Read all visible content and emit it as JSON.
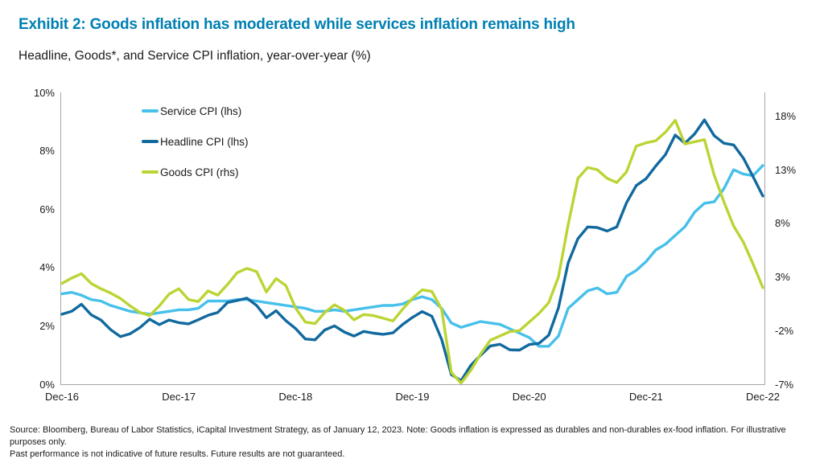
{
  "colors": {
    "title": "#0080b2",
    "service": "#47c0ea",
    "headline": "#11699e",
    "goods": "#bcd433",
    "axis_line": "#a6a6a6",
    "text": "#1a1a1a"
  },
  "chart_data": {
    "type": "line",
    "title": "Exhibit 2: Goods inflation has moderated while services inflation remains high",
    "subtitle": "Headline, Goods*, and Service CPI inflation, year-over-year (%)",
    "gridlines": false,
    "legend_position": "top-left-inside",
    "x_frequency": "monthly",
    "x_range": [
      "Dec-16",
      "Dec-22"
    ],
    "x_tick_labels": [
      {
        "label": "Dec-16",
        "index": 0
      },
      {
        "label": "Dec-17",
        "index": 12
      },
      {
        "label": "Dec-18",
        "index": 24
      },
      {
        "label": "Dec-19",
        "index": 36
      },
      {
        "label": "Dec-20",
        "index": 48
      },
      {
        "label": "Dec-21",
        "index": 60
      },
      {
        "label": "Dec-22",
        "index": 72
      }
    ],
    "left_axis": {
      "side": "left",
      "min": 0,
      "max": 10,
      "ticks": [
        {
          "label": "0%",
          "value": 0
        },
        {
          "label": "2%",
          "value": 2
        },
        {
          "label": "4%",
          "value": 4
        },
        {
          "label": "6%",
          "value": 6
        },
        {
          "label": "8%",
          "value": 8
        },
        {
          "label": "10%",
          "value": 10
        }
      ]
    },
    "right_axis": {
      "side": "right",
      "min": -7,
      "max": 20.2,
      "ticks": [
        {
          "label": "-7%",
          "value": -7
        },
        {
          "label": "-2%",
          "value": -2
        },
        {
          "label": "3%",
          "value": 3
        },
        {
          "label": "8%",
          "value": 8
        },
        {
          "label": "13%",
          "value": 13
        },
        {
          "label": "18%",
          "value": 18
        }
      ]
    },
    "series": [
      {
        "name": "Service CPI (lhs)",
        "axis": "left",
        "color_key": "service",
        "values": [
          3.1,
          3.15,
          3.05,
          2.9,
          2.85,
          2.7,
          2.6,
          2.5,
          2.45,
          2.4,
          2.45,
          2.5,
          2.55,
          2.55,
          2.6,
          2.85,
          2.85,
          2.85,
          2.9,
          2.9,
          2.85,
          2.8,
          2.75,
          2.7,
          2.65,
          2.6,
          2.5,
          2.5,
          2.55,
          2.5,
          2.55,
          2.6,
          2.65,
          2.7,
          2.7,
          2.75,
          2.9,
          3.0,
          2.9,
          2.6,
          2.1,
          1.95,
          2.05,
          2.15,
          2.1,
          2.05,
          1.9,
          1.75,
          1.6,
          1.3,
          1.3,
          1.65,
          2.6,
          2.9,
          3.2,
          3.3,
          3.1,
          3.15,
          3.7,
          3.9,
          4.2,
          4.6,
          4.8,
          5.1,
          5.4,
          5.9,
          6.2,
          6.25,
          6.7,
          7.35,
          7.2,
          7.15,
          7.5
        ]
      },
      {
        "name": "Headline CPI (lhs)",
        "axis": "left",
        "color_key": "headline",
        "values": [
          2.4,
          2.5,
          2.74,
          2.38,
          2.2,
          1.87,
          1.63,
          1.73,
          1.94,
          2.23,
          2.04,
          2.2,
          2.11,
          2.07,
          2.21,
          2.36,
          2.46,
          2.8,
          2.87,
          2.95,
          2.7,
          2.28,
          2.52,
          2.18,
          1.91,
          1.55,
          1.52,
          1.86,
          2.0,
          1.79,
          1.65,
          1.81,
          1.75,
          1.71,
          1.76,
          2.05,
          2.29,
          2.49,
          2.33,
          1.54,
          0.33,
          0.12,
          0.65,
          0.99,
          1.31,
          1.37,
          1.18,
          1.17,
          1.36,
          1.4,
          1.68,
          2.62,
          4.16,
          4.99,
          5.39,
          5.37,
          5.25,
          5.39,
          6.22,
          6.81,
          7.04,
          7.48,
          7.87,
          8.54,
          8.26,
          8.58,
          9.06,
          8.52,
          8.26,
          8.2,
          7.75,
          7.11,
          6.45
        ]
      },
      {
        "name": "Goods CPI (rhs)",
        "axis": "right",
        "color_key": "goods",
        "values": [
          2.4,
          2.9,
          3.3,
          2.4,
          1.9,
          1.5,
          1.0,
          0.3,
          -0.3,
          -0.6,
          0.3,
          1.4,
          1.9,
          0.9,
          0.7,
          1.7,
          1.3,
          2.3,
          3.4,
          3.8,
          3.5,
          1.6,
          2.85,
          2.2,
          0.1,
          -1.2,
          -1.35,
          -0.3,
          0.4,
          -0.1,
          -1.0,
          -0.5,
          -0.6,
          -0.85,
          -1.1,
          0.0,
          1.0,
          1.8,
          1.65,
          0.0,
          -5.9,
          -6.9,
          -5.7,
          -4.2,
          -2.9,
          -2.5,
          -2.1,
          -2.0,
          -1.2,
          -0.4,
          0.6,
          3.0,
          7.9,
          12.2,
          13.2,
          13.0,
          12.2,
          11.8,
          12.8,
          15.2,
          15.5,
          15.7,
          16.5,
          17.6,
          15.4,
          15.6,
          15.8,
          12.5,
          10.0,
          7.75,
          6.25,
          4.2,
          2.0
        ]
      }
    ]
  },
  "notes": {
    "line1": "Source: Bloomberg, Bureau of Labor Statistics, iCapital Investment Strategy, as of January 12, 2023. Note: Goods inflation is expressed as durables and non-durables ex-food inflation. For illustrative purposes only.",
    "line2": "Past performance is not indicative of future results. Future results are not guaranteed."
  }
}
